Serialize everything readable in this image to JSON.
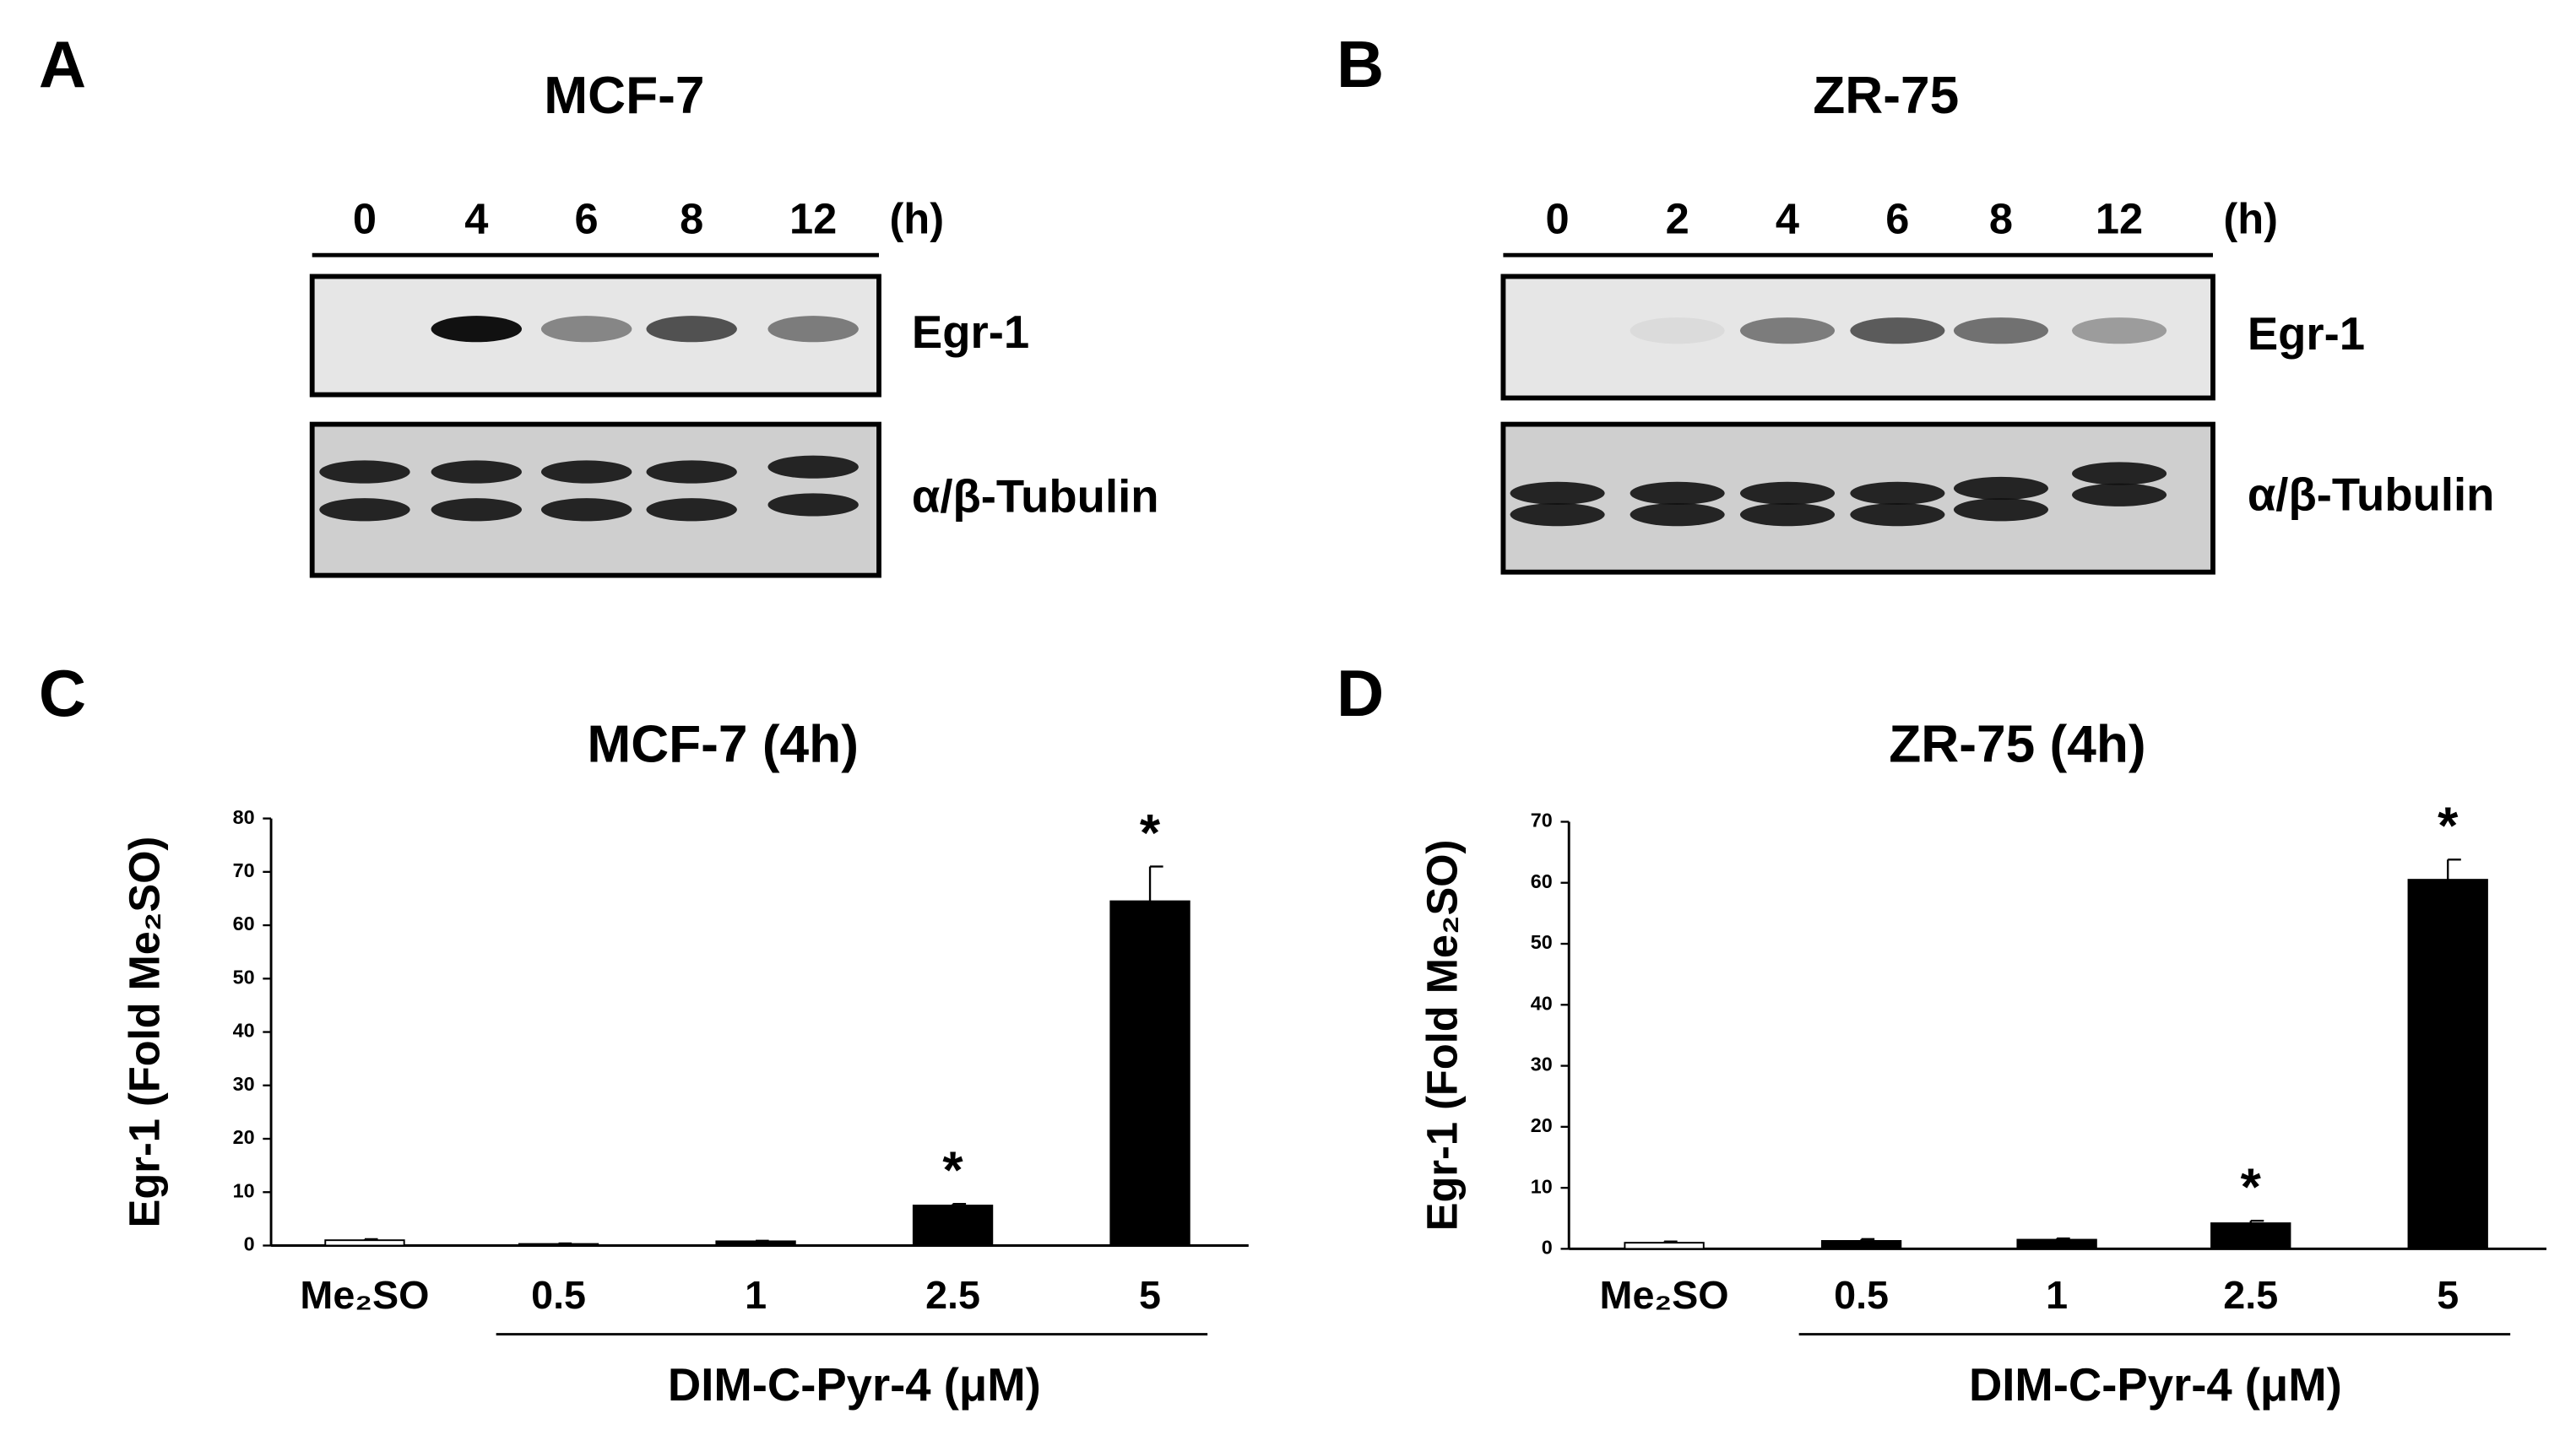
{
  "blots": [
    {
      "label": "A",
      "title": "MCF-7",
      "lanes": [
        "0",
        "4",
        "6",
        "8",
        "12"
      ],
      "unit": "(h)",
      "bands": [
        "Egr-1",
        "α/β-Tubulin"
      ]
    },
    {
      "label": "B",
      "title": "ZR-75",
      "lanes": [
        "0",
        "2",
        "4",
        "6",
        "8",
        "12"
      ],
      "unit": "(h)",
      "bands": [
        "Egr-1",
        "α/β-Tubulin"
      ]
    }
  ],
  "chart_data": [
    {
      "type": "bar",
      "label": "C",
      "title": "MCF-7 (4h)",
      "y_label": "Egr-1 (Fold Me₂SO)",
      "x_label": "DIM-C-Pyr-4 (μM)",
      "categories": [
        "Me₂SO",
        "0.5",
        "1",
        "2.5",
        "5"
      ],
      "values": [
        1,
        0.3,
        0.8,
        7.5,
        64.5
      ],
      "errors": [
        0.2,
        0.1,
        0.1,
        0.3,
        6.5
      ],
      "colors": [
        "#ffffff",
        "#000000",
        "#000000",
        "#000000",
        "#000000"
      ],
      "significance": [
        null,
        null,
        null,
        "*",
        "*"
      ],
      "ylim": [
        0,
        80
      ],
      "yticks": [
        0,
        10,
        20,
        30,
        40,
        50,
        60,
        70,
        80
      ]
    },
    {
      "type": "bar",
      "label": "D",
      "title": "ZR-75 (4h)",
      "y_label": "Egr-1 (Fold Me₂SO)",
      "x_label": "DIM-C-Pyr-4 (μM)",
      "categories": [
        "Me₂SO",
        "0.5",
        "1",
        "2.5",
        "5"
      ],
      "values": [
        1,
        1.3,
        1.5,
        4.2,
        60.5
      ],
      "errors": [
        0.2,
        0.3,
        0.2,
        0.4,
        3.3
      ],
      "colors": [
        "#ffffff",
        "#000000",
        "#000000",
        "#000000",
        "#000000"
      ],
      "significance": [
        null,
        null,
        null,
        "*",
        "*"
      ],
      "ylim": [
        0,
        70
      ],
      "yticks": [
        0,
        10,
        20,
        30,
        40,
        50,
        60,
        70
      ]
    }
  ]
}
